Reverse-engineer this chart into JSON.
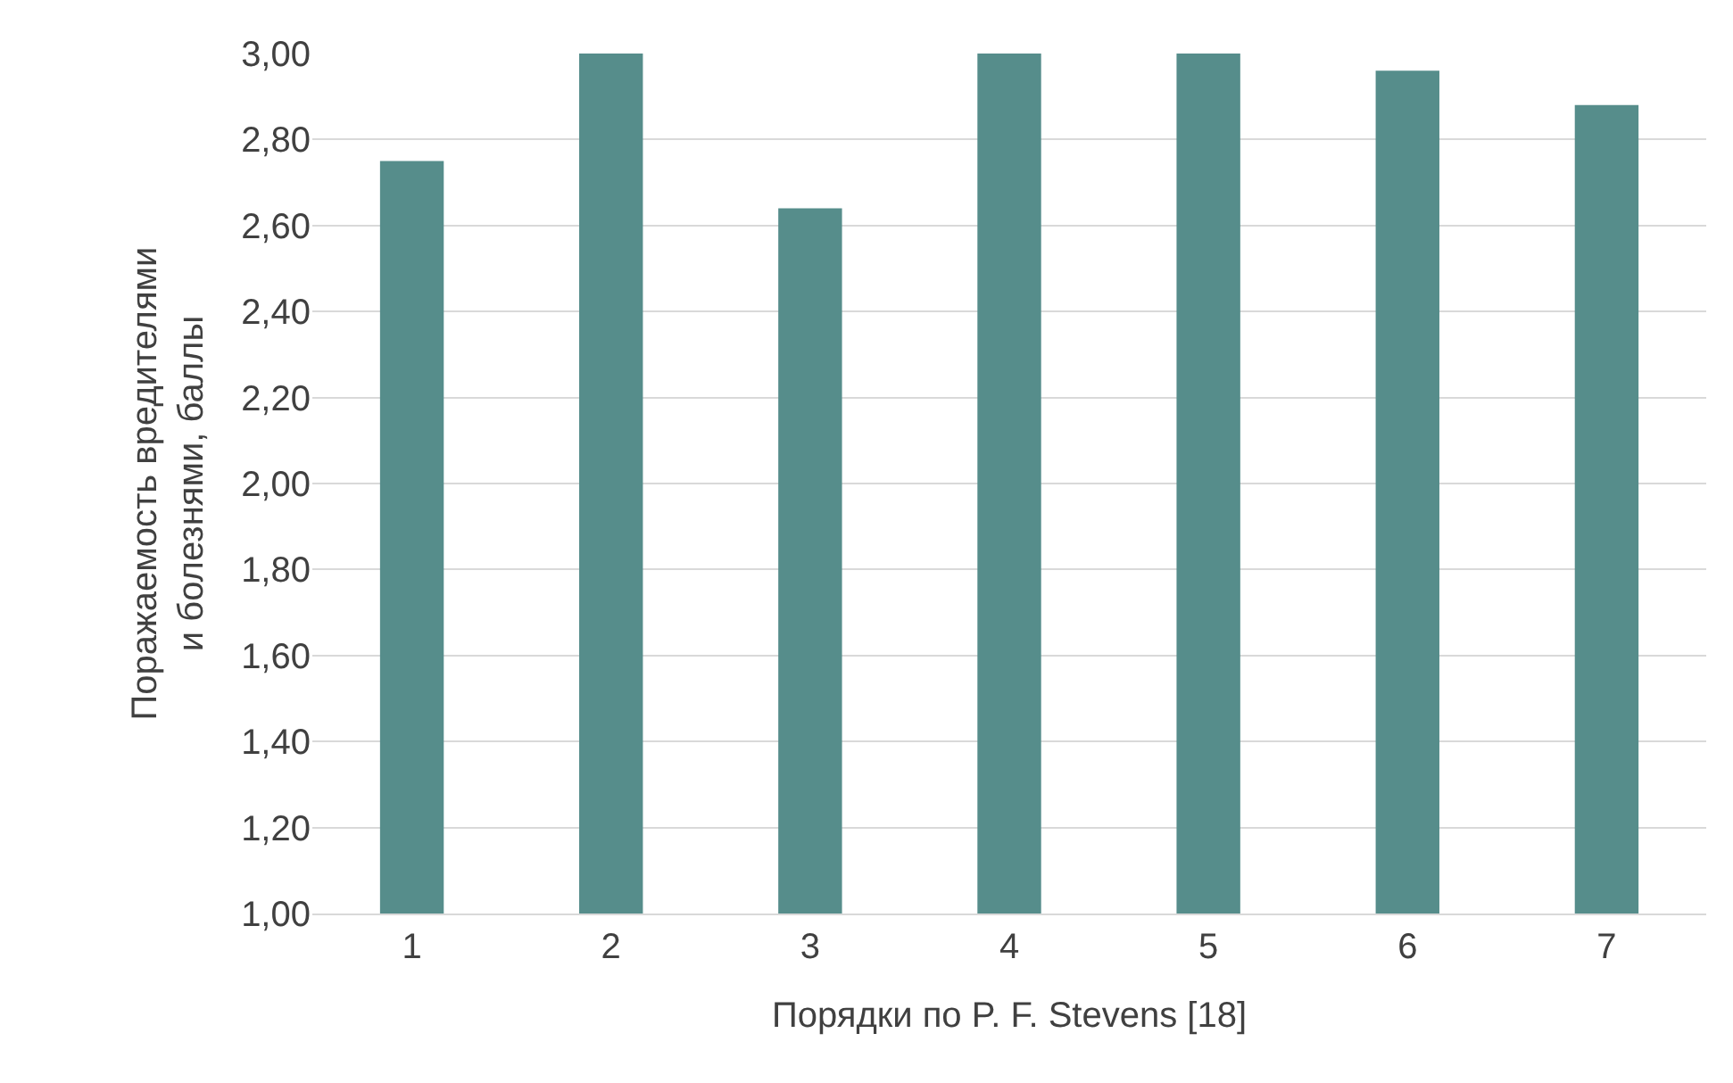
{
  "chart_data": {
    "type": "bar",
    "xlabel": "Порядки по P. F. Stevens [18]",
    "ylabel": "Поражаемость вредителями\nи болезнями, баллы",
    "categories": [
      "1",
      "2",
      "3",
      "4",
      "5",
      "6",
      "7"
    ],
    "values": [
      2.75,
      3.0,
      2.64,
      3.0,
      3.0,
      2.96,
      2.88
    ],
    "color": "#568d8b",
    "ylim": [
      1.0,
      3.0
    ],
    "yticks": [
      {
        "value": 1.0,
        "label": "1,00"
      },
      {
        "value": 1.2,
        "label": "1,20"
      },
      {
        "value": 1.4,
        "label": "1,40"
      },
      {
        "value": 1.6,
        "label": "1,60"
      },
      {
        "value": 1.8,
        "label": "1,80"
      },
      {
        "value": 2.0,
        "label": "2,00"
      },
      {
        "value": 2.2,
        "label": "2,20"
      },
      {
        "value": 2.4,
        "label": "2,40"
      },
      {
        "value": 2.6,
        "label": "2,60"
      },
      {
        "value": 2.8,
        "label": "2,80"
      },
      {
        "value": 3.0,
        "label": "3,00"
      }
    ],
    "grid": "y"
  }
}
